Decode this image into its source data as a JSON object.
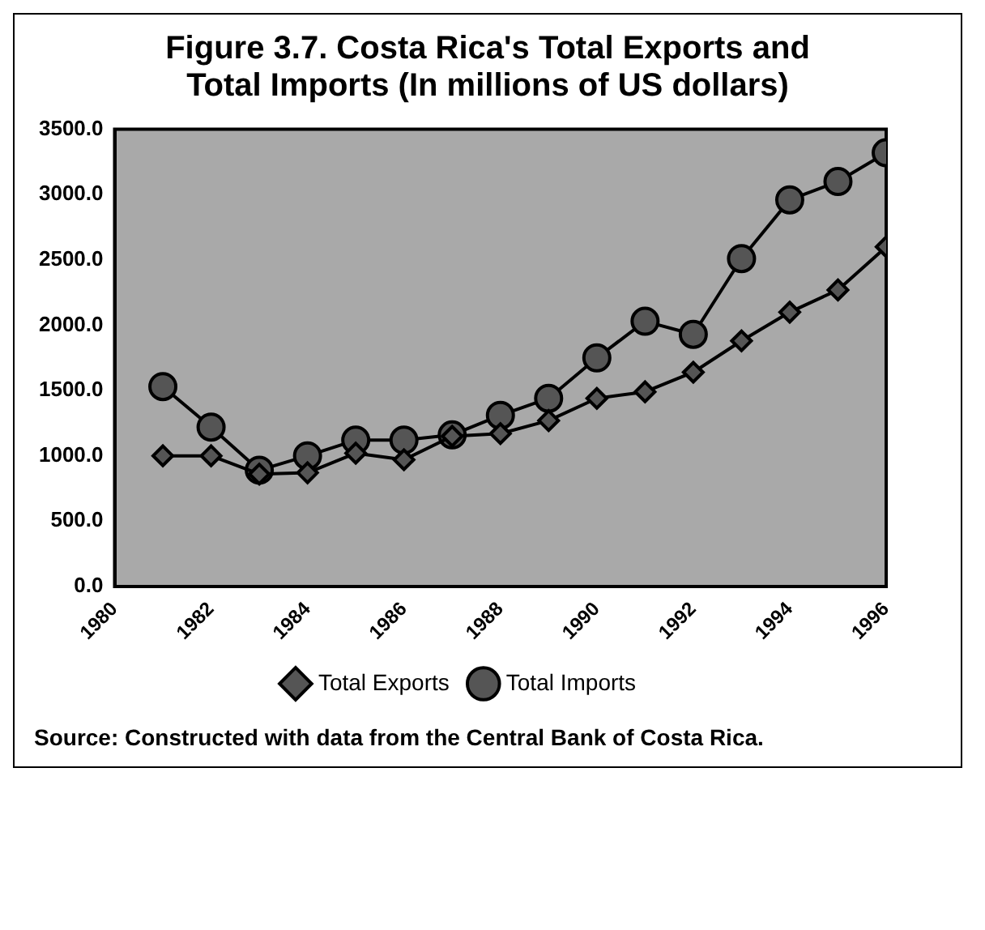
{
  "chart_data": {
    "type": "line",
    "title": "Figure 3.7. Costa Rica's Total Exports and Total Imports (In millions of US dollars)",
    "series": [
      {
        "name": "Total Exports",
        "color": "#000000",
        "marker": "diamond",
        "x": [
          1981,
          1982,
          1983,
          1984,
          1985,
          1986,
          1987,
          1988,
          1989,
          1990,
          1991,
          1992,
          1993,
          1994,
          1995,
          1996
        ],
        "values": [
          1000,
          1000,
          860,
          870,
          1020,
          970,
          1150,
          1170,
          1270,
          1440,
          1490,
          1640,
          1880,
          2100,
          2270,
          2600
        ]
      },
      {
        "name": "Total Imports",
        "color": "#000000",
        "marker": "circle",
        "x": [
          1981,
          1982,
          1983,
          1984,
          1985,
          1986,
          1987,
          1988,
          1989,
          1990,
          1991,
          1992,
          1993,
          1994,
          1995,
          1996
        ],
        "values": [
          1530,
          1220,
          890,
          1000,
          1120,
          1120,
          1160,
          1310,
          1440,
          1750,
          2030,
          1930,
          2510,
          2960,
          3100,
          3320
        ]
      }
    ],
    "xlim": [
      1980,
      1996
    ],
    "xticks": [
      1980,
      1982,
      1984,
      1986,
      1988,
      1990,
      1992,
      1994,
      1996
    ],
    "ylim": [
      0,
      3500
    ],
    "yticks": [
      {
        "value": 0,
        "label": "0.0"
      },
      {
        "value": 500,
        "label": "500.0"
      },
      {
        "value": 1000,
        "label": "1000.0"
      },
      {
        "value": 1500,
        "label": "1500.0"
      },
      {
        "value": 2000,
        "label": "2000.0"
      },
      {
        "value": 2500,
        "label": "2500.0"
      },
      {
        "value": 3000,
        "label": "3000.0"
      },
      {
        "value": 3500,
        "label": "3500.0"
      }
    ],
    "grid": false,
    "legend": "bottom",
    "annotations": [
      "Source: Constructed with data from the Central Bank of Costa Rica."
    ]
  }
}
